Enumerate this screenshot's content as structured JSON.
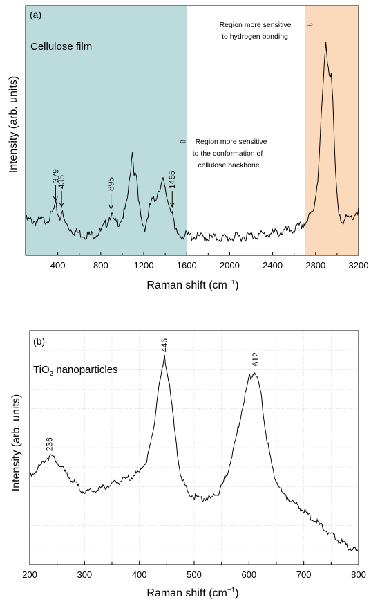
{
  "chart_data": [
    {
      "type": "line",
      "panel_label": "(a)",
      "sample_label": "Cellulose film",
      "xlabel": "Raman shift (cm",
      "xlabel_sup": "−1",
      "xlabel_end": ")",
      "ylabel": "Intensity (arb. units)",
      "xlim": [
        100,
        3200
      ],
      "ylim": [
        0,
        1
      ],
      "xticks": [
        400,
        800,
        1200,
        1600,
        2000,
        2400,
        2800,
        3200
      ],
      "grid": false,
      "regions": [
        {
          "x": [
            100,
            1600
          ],
          "color": "#bcdcdc",
          "label_lines": [
            "Region more sensitive",
            "to the conformation of",
            "cellulose backbone"
          ],
          "arrow": "⇦"
        },
        {
          "x": [
            2700,
            3200
          ],
          "color": "#fbd9bb",
          "label_lines": [
            "Region more sensitive",
            "to hydrogen bonding"
          ],
          "arrow": "⇨"
        }
      ],
      "peak_labels": [
        {
          "x": 379,
          "label": "379"
        },
        {
          "x": 435,
          "label": "435"
        },
        {
          "x": 895,
          "label": "895"
        },
        {
          "x": 1465,
          "label": "1465"
        }
      ],
      "series": [
        {
          "color": "#000000",
          "x": [
            100,
            200,
            300,
            340,
            379,
            400,
            420,
            435,
            460,
            500,
            560,
            620,
            700,
            800,
            850,
            895,
            930,
            970,
            1000,
            1040,
            1070,
            1095,
            1110,
            1125,
            1150,
            1180,
            1210,
            1240,
            1270,
            1300,
            1340,
            1380,
            1400,
            1430,
            1465,
            1490,
            1520,
            1600,
            1800,
            2000,
            2200,
            2400,
            2600,
            2700,
            2780,
            2820,
            2860,
            2895,
            2910,
            2935,
            2945,
            2960,
            2985,
            3010,
            3050,
            3100,
            3150,
            3200
          ],
          "y": [
            0.13,
            0.12,
            0.13,
            0.15,
            0.2,
            0.16,
            0.14,
            0.17,
            0.12,
            0.09,
            0.07,
            0.06,
            0.05,
            0.07,
            0.11,
            0.16,
            0.11,
            0.12,
            0.14,
            0.2,
            0.33,
            0.48,
            0.35,
            0.38,
            0.22,
            0.12,
            0.09,
            0.15,
            0.22,
            0.22,
            0.28,
            0.32,
            0.27,
            0.21,
            0.17,
            0.07,
            0.06,
            0.05,
            0.04,
            0.04,
            0.05,
            0.06,
            0.08,
            0.11,
            0.17,
            0.33,
            0.7,
            1.0,
            0.92,
            0.83,
            0.85,
            0.7,
            0.35,
            0.17,
            0.13,
            0.13,
            0.15,
            0.18
          ]
        }
      ]
    },
    {
      "type": "line",
      "panel_label": "(b)",
      "sample_label_main": "TiO",
      "sample_label_sub": "2",
      "sample_label_rest": " nanoparticles",
      "xlabel": "Raman shift (cm",
      "xlabel_sup": "−1",
      "xlabel_end": ")",
      "ylabel": "Intensity (arb. units)",
      "xlim": [
        200,
        800
      ],
      "ylim": [
        0,
        1
      ],
      "xticks": [
        200,
        300,
        400,
        500,
        600,
        700,
        800
      ],
      "grid": true,
      "peak_labels": [
        {
          "x": 236,
          "label": "236"
        },
        {
          "x": 446,
          "label": "446"
        },
        {
          "x": 612,
          "label": "612"
        }
      ],
      "series": [
        {
          "color": "#000000",
          "x": [
            200,
            215,
            230,
            240,
            250,
            265,
            280,
            300,
            320,
            350,
            380,
            400,
            415,
            425,
            435,
            446,
            455,
            465,
            475,
            490,
            510,
            530,
            545,
            560,
            575,
            590,
            600,
            612,
            622,
            632,
            645,
            660,
            690,
            720,
            750,
            780,
            800
          ],
          "y": [
            0.42,
            0.45,
            0.5,
            0.51,
            0.48,
            0.43,
            0.38,
            0.33,
            0.34,
            0.37,
            0.4,
            0.43,
            0.5,
            0.63,
            0.85,
            1.0,
            0.87,
            0.62,
            0.42,
            0.32,
            0.3,
            0.3,
            0.33,
            0.42,
            0.58,
            0.78,
            0.9,
            0.93,
            0.82,
            0.6,
            0.42,
            0.33,
            0.26,
            0.19,
            0.12,
            0.06,
            0.03
          ]
        }
      ]
    }
  ]
}
